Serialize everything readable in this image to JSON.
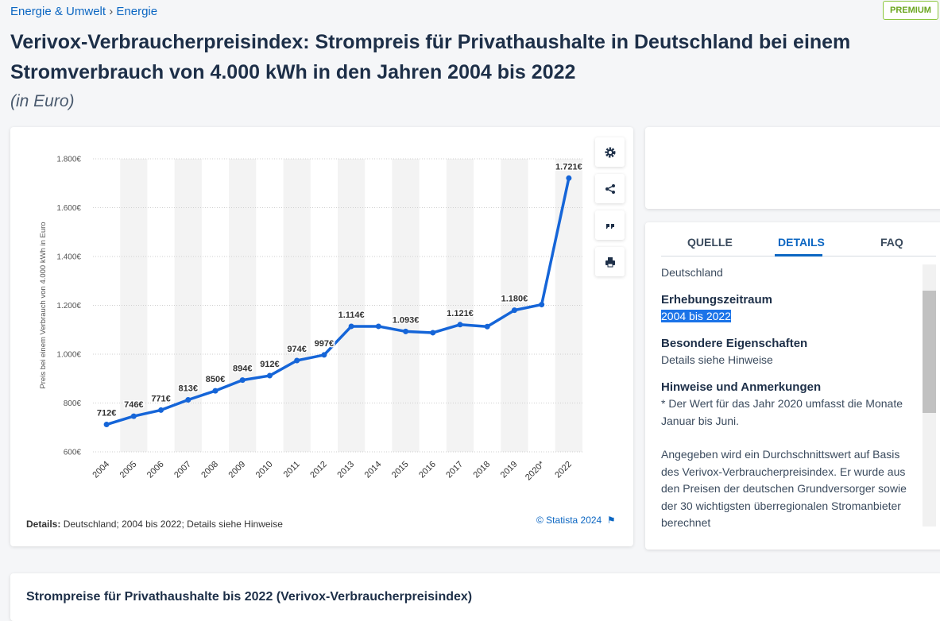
{
  "breadcrumb": [
    "Energie & Umwelt",
    "Energie"
  ],
  "badge": "PREMIUM",
  "header": {
    "title_lines": [
      "Verivox-Verbraucherpreisindex: Strompreis für Privathaushalte in Deutschland bei einem",
      "Stromverbrauch von 4.000 kWh in den Jahren 2004 bis 2022"
    ],
    "subtitle": "(in Euro)"
  },
  "chart_data": {
    "type": "line",
    "y_label": "Preis bei einem Verbrauch von 4.000 kWh in Euro",
    "categories": [
      "2004",
      "2005",
      "2006",
      "2007",
      "2008",
      "2009",
      "2010",
      "2011",
      "2012",
      "2013",
      "2014",
      "2015",
      "2016",
      "2017",
      "2018",
      "2019",
      "2020*",
      "2022"
    ],
    "values": [
      712,
      746,
      771,
      813,
      850,
      894,
      912,
      974,
      997,
      1114,
      1114,
      1093,
      1088,
      1121,
      1113,
      1180,
      1203,
      1721
    ],
    "value_labels": [
      "712€",
      "746€",
      "771€",
      "813€",
      "850€",
      "894€",
      "912€",
      "974€",
      "997€",
      "1.114€",
      null,
      "1.093€",
      null,
      "1.121€",
      null,
      "1.180€",
      null,
      "1.721€"
    ],
    "color": "#1565d8",
    "ylim": [
      600,
      1800
    ],
    "yticks": [
      {
        "value": 600,
        "label": "600€"
      },
      {
        "value": 800,
        "label": "800€"
      },
      {
        "value": 1000,
        "label": "1.000€"
      },
      {
        "value": 1200,
        "label": "1.200€"
      },
      {
        "value": 1400,
        "label": "1.400€"
      },
      {
        "value": 1600,
        "label": "1.600€"
      },
      {
        "value": 1800,
        "label": "1.800€"
      }
    ],
    "grid": true
  },
  "chart_footer": {
    "details_label": "Details:",
    "details": "Deutschland; 2004 bis 2022; Details siehe Hinweise",
    "copyright": "© Statista 2024"
  },
  "side_panel": {
    "tabs": [
      "QUELLE",
      "DETAILS",
      "FAQ"
    ],
    "region": "Deutschland",
    "sections": [
      {
        "heading": "Erhebungszeitraum",
        "text": [
          "2004 bis 2022"
        ]
      },
      {
        "heading": "Besondere Eigenschaften",
        "text": [
          "Details siehe Hinweise"
        ]
      },
      {
        "heading": "Hinweise und Anmerkungen",
        "text": [
          "* Der Wert für das Jahr 2020 umfasst die Monate Januar bis Juni.",
          "Angegeben wird ein Durchschnittswert auf Basis des Verivox-Verbraucherpreisindex. Er wurde aus den Preisen der deutschen Grundversorger sowie der 30 wichtigsten überregionalen Stromanbieter berechnet"
        ]
      }
    ]
  },
  "next_section": {
    "title": "Strompreise für Privathaushalte bis 2022 (Verivox-Verbraucherpreisindex)"
  }
}
